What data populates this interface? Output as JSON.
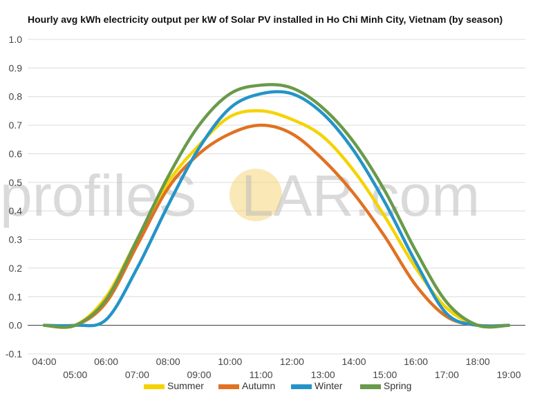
{
  "watermark": {
    "left": "profileS",
    "o_color": "#f5d77a",
    "right": "LAR.com"
  },
  "chart_data": {
    "type": "line",
    "title": "Hourly avg kWh electricity output per kW of Solar PV installed in Ho Chi Minh City, Vietnam (by season)",
    "xlabel": "",
    "ylabel": "",
    "ylim": [
      -0.1,
      1.0
    ],
    "yticks": [
      -0.1,
      0.0,
      0.1,
      0.2,
      0.3,
      0.4,
      0.5,
      0.6,
      0.7,
      0.8,
      0.9,
      1.0
    ],
    "ytick_labels": [
      "-0.1",
      "0.0",
      "0.1",
      "0.2",
      "0.3",
      "0.4",
      "0.5",
      "0.6",
      "0.7",
      "0.8",
      "0.9",
      "1.0"
    ],
    "x": [
      "04:00",
      "05:00",
      "06:00",
      "07:00",
      "08:00",
      "09:00",
      "10:00",
      "11:00",
      "12:00",
      "13:00",
      "14:00",
      "15:00",
      "16:00",
      "17:00",
      "18:00",
      "19:00"
    ],
    "grid": true,
    "legend_position": "bottom",
    "series": [
      {
        "name": "Summer",
        "color": "#f5d300",
        "values": [
          0.0,
          0.0,
          0.1,
          0.3,
          0.5,
          0.63,
          0.73,
          0.75,
          0.72,
          0.66,
          0.54,
          0.38,
          0.2,
          0.06,
          0.0,
          0.0
        ]
      },
      {
        "name": "Autumn",
        "color": "#e07222",
        "values": [
          0.0,
          0.0,
          0.08,
          0.28,
          0.48,
          0.6,
          0.67,
          0.7,
          0.67,
          0.58,
          0.46,
          0.31,
          0.14,
          0.03,
          0.0,
          0.0
        ]
      },
      {
        "name": "Winter",
        "color": "#2494c8",
        "values": [
          0.0,
          0.0,
          0.02,
          0.2,
          0.42,
          0.62,
          0.76,
          0.81,
          0.81,
          0.74,
          0.61,
          0.43,
          0.22,
          0.04,
          0.0,
          0.0
        ]
      },
      {
        "name": "Spring",
        "color": "#6a9a4a",
        "values": [
          0.0,
          0.0,
          0.09,
          0.3,
          0.52,
          0.7,
          0.81,
          0.84,
          0.83,
          0.76,
          0.64,
          0.47,
          0.26,
          0.08,
          0.0,
          0.0
        ]
      }
    ]
  }
}
